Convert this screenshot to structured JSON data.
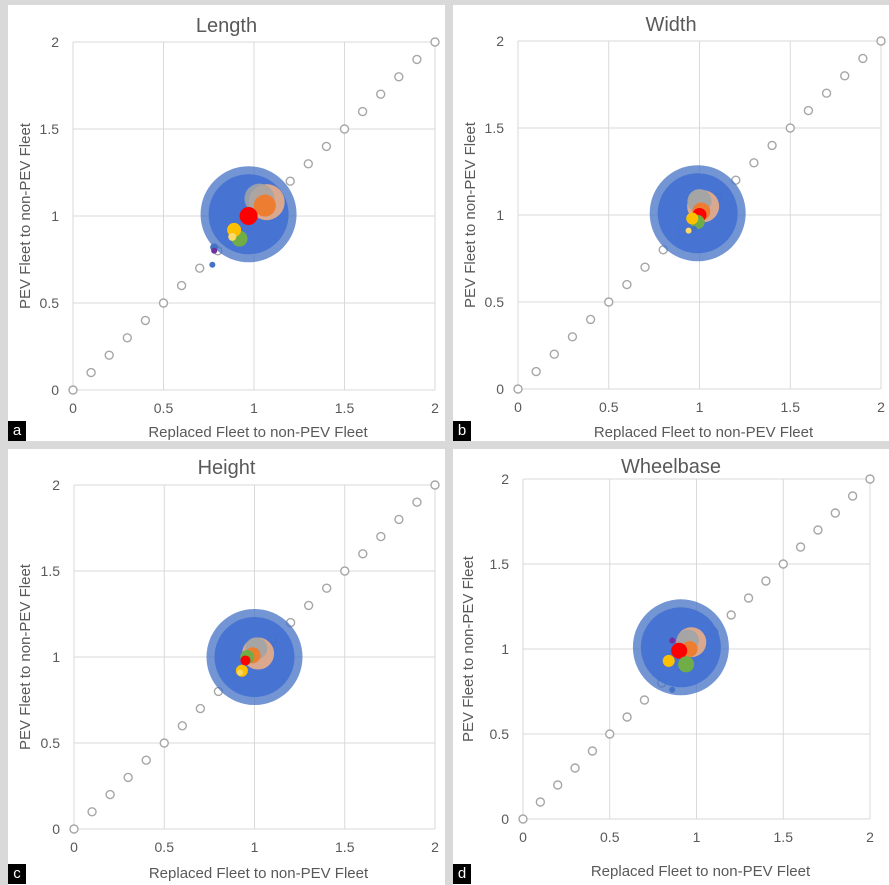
{
  "chart_data": [
    {
      "type": "scatter",
      "panel_label": "a",
      "title": "Length",
      "xlabel": "Replaced Fleet to non-PEV Fleet",
      "ylabel": "PEV Fleet to non-PEV Fleet",
      "xlim": [
        0,
        2
      ],
      "ylim": [
        0,
        2
      ],
      "xticks": [
        "0",
        "0.5",
        "1",
        "1.5",
        "2"
      ],
      "yticks": [
        "0",
        "0.5",
        "1",
        "1.5",
        "2"
      ],
      "reference_points": {
        "x": [
          0,
          0.1,
          0.2,
          0.3,
          0.4,
          0.5,
          0.6,
          0.7,
          0.8,
          0.9,
          1,
          1.1,
          1.2,
          1.3,
          1.4,
          1.5,
          1.6,
          1.7,
          1.8,
          1.9,
          2
        ],
        "y": [
          0,
          0.1,
          0.2,
          0.3,
          0.4,
          0.5,
          0.6,
          0.7,
          0.8,
          0.9,
          1,
          1.1,
          1.2,
          1.3,
          1.4,
          1.5,
          1.6,
          1.7,
          1.8,
          1.9,
          2
        ]
      },
      "bubbles": [
        {
          "x": 0.97,
          "y": 1.01,
          "size": 48,
          "color": "#4472c4"
        },
        {
          "x": 0.97,
          "y": 1.01,
          "size": 40,
          "color": "#3f6fd1"
        },
        {
          "x": 1.07,
          "y": 1.08,
          "size": 18,
          "color": "#f4b183"
        },
        {
          "x": 1.03,
          "y": 1.1,
          "size": 15,
          "color": "#a5a5a5"
        },
        {
          "x": 1.06,
          "y": 1.06,
          "size": 11,
          "color": "#ed7d31"
        },
        {
          "x": 0.97,
          "y": 1.0,
          "size": 9,
          "color": "#ff0000"
        },
        {
          "x": 0.92,
          "y": 0.87,
          "size": 8,
          "color": "#70ad47"
        },
        {
          "x": 0.89,
          "y": 0.92,
          "size": 7,
          "color": "#ffc000"
        },
        {
          "x": 0.88,
          "y": 0.88,
          "size": 4,
          "color": "#ffd966"
        },
        {
          "x": 0.78,
          "y": 0.82,
          "size": 4,
          "color": "#4472c4"
        },
        {
          "x": 0.77,
          "y": 0.72,
          "size": 3,
          "color": "#4472c4"
        },
        {
          "x": 0.78,
          "y": 0.8,
          "size": 3,
          "color": "#7030a0"
        }
      ]
    },
    {
      "type": "scatter",
      "panel_label": "b",
      "title": "Width",
      "xlabel": "Replaced Fleet to non-PEV Fleet",
      "ylabel": "PEV Fleet to non-PEV Fleet",
      "xlim": [
        0,
        2
      ],
      "ylim": [
        0,
        2
      ],
      "xticks": [
        "0",
        "0.5",
        "1",
        "1.5",
        "2"
      ],
      "yticks": [
        "0",
        "0.5",
        "1",
        "1.5",
        "2"
      ],
      "reference_points": {
        "x": [
          0,
          0.1,
          0.2,
          0.3,
          0.4,
          0.5,
          0.6,
          0.7,
          0.8,
          0.9,
          1,
          1.1,
          1.2,
          1.3,
          1.4,
          1.5,
          1.6,
          1.7,
          1.8,
          1.9,
          2
        ],
        "y": [
          0,
          0.1,
          0.2,
          0.3,
          0.4,
          0.5,
          0.6,
          0.7,
          0.8,
          0.9,
          1,
          1.1,
          1.2,
          1.3,
          1.4,
          1.5,
          1.6,
          1.7,
          1.8,
          1.9,
          2
        ]
      },
      "bubbles": [
        {
          "x": 0.99,
          "y": 1.01,
          "size": 48,
          "color": "#4472c4"
        },
        {
          "x": 0.99,
          "y": 1.01,
          "size": 40,
          "color": "#3f6fd1"
        },
        {
          "x": 1.02,
          "y": 1.05,
          "size": 16,
          "color": "#f4b183"
        },
        {
          "x": 1.0,
          "y": 1.08,
          "size": 12,
          "color": "#a5a5a5"
        },
        {
          "x": 1.01,
          "y": 1.02,
          "size": 9,
          "color": "#ed7d31"
        },
        {
          "x": 1.0,
          "y": 1.0,
          "size": 7,
          "color": "#ff0000"
        },
        {
          "x": 0.99,
          "y": 0.96,
          "size": 7,
          "color": "#70ad47"
        },
        {
          "x": 0.96,
          "y": 0.98,
          "size": 6,
          "color": "#ffc000"
        },
        {
          "x": 0.94,
          "y": 0.91,
          "size": 3,
          "color": "#ffd966"
        },
        {
          "x": 0.97,
          "y": 0.92,
          "size": 3,
          "color": "#4472c4"
        }
      ]
    },
    {
      "type": "scatter",
      "panel_label": "c",
      "title": "Height",
      "xlabel": "Replaced Fleet to non-PEV Fleet",
      "ylabel": "PEV Fleet to non-PEV Fleet",
      "xlim": [
        0,
        2
      ],
      "ylim": [
        0,
        2
      ],
      "xticks": [
        "0",
        "0.5",
        "1",
        "1.5",
        "2"
      ],
      "yticks": [
        "0",
        "0.5",
        "1",
        "1.5",
        "2"
      ],
      "reference_points": {
        "x": [
          0,
          0.1,
          0.2,
          0.3,
          0.4,
          0.5,
          0.6,
          0.7,
          0.8,
          0.9,
          1,
          1.1,
          1.2,
          1.3,
          1.4,
          1.5,
          1.6,
          1.7,
          1.8,
          1.9,
          2
        ],
        "y": [
          0,
          0.1,
          0.2,
          0.3,
          0.4,
          0.5,
          0.6,
          0.7,
          0.8,
          0.9,
          1,
          1.1,
          1.2,
          1.3,
          1.4,
          1.5,
          1.6,
          1.7,
          1.8,
          1.9,
          2
        ]
      },
      "bubbles": [
        {
          "x": 1.0,
          "y": 1.0,
          "size": 48,
          "color": "#4472c4"
        },
        {
          "x": 1.0,
          "y": 1.0,
          "size": 40,
          "color": "#3f6fd1"
        },
        {
          "x": 1.02,
          "y": 1.02,
          "size": 16,
          "color": "#f4b183"
        },
        {
          "x": 1.01,
          "y": 1.05,
          "size": 11,
          "color": "#a5a5a5"
        },
        {
          "x": 0.99,
          "y": 1.01,
          "size": 8,
          "color": "#ed7d31"
        },
        {
          "x": 0.96,
          "y": 1.0,
          "size": 7,
          "color": "#70ad47"
        },
        {
          "x": 0.95,
          "y": 0.98,
          "size": 5,
          "color": "#ff0000"
        },
        {
          "x": 0.93,
          "y": 0.92,
          "size": 6,
          "color": "#ffc000"
        },
        {
          "x": 0.92,
          "y": 0.91,
          "size": 3,
          "color": "#ffd966"
        }
      ]
    },
    {
      "type": "scatter",
      "panel_label": "d",
      "title": "Wheelbase",
      "xlabel": "Replaced Fleet to non-PEV Fleet",
      "ylabel": "PEV Fleet to non-PEV Fleet",
      "xlim": [
        0,
        2
      ],
      "ylim": [
        0,
        2
      ],
      "xticks": [
        "0",
        "0.5",
        "1",
        "1.5",
        "2"
      ],
      "yticks": [
        "0",
        "0.5",
        "1",
        "1.5",
        "2"
      ],
      "reference_points": {
        "x": [
          0,
          0.1,
          0.2,
          0.3,
          0.4,
          0.5,
          0.6,
          0.7,
          0.8,
          0.9,
          1,
          1.1,
          1.2,
          1.3,
          1.4,
          1.5,
          1.6,
          1.7,
          1.8,
          1.9,
          2
        ],
        "y": [
          0,
          0.1,
          0.2,
          0.3,
          0.4,
          0.5,
          0.6,
          0.7,
          0.8,
          0.9,
          1,
          1.1,
          1.2,
          1.3,
          1.4,
          1.5,
          1.6,
          1.7,
          1.8,
          1.9,
          2
        ]
      },
      "bubbles": [
        {
          "x": 0.91,
          "y": 1.01,
          "size": 48,
          "color": "#4472c4"
        },
        {
          "x": 0.91,
          "y": 1.01,
          "size": 40,
          "color": "#3f6fd1"
        },
        {
          "x": 0.97,
          "y": 1.04,
          "size": 15,
          "color": "#f4b183"
        },
        {
          "x": 0.95,
          "y": 1.05,
          "size": 11,
          "color": "#a5a5a5"
        },
        {
          "x": 0.96,
          "y": 1.0,
          "size": 8,
          "color": "#ed7d31"
        },
        {
          "x": 0.9,
          "y": 0.99,
          "size": 8,
          "color": "#ff0000"
        },
        {
          "x": 0.94,
          "y": 0.91,
          "size": 8,
          "color": "#70ad47"
        },
        {
          "x": 0.84,
          "y": 0.93,
          "size": 6,
          "color": "#ffc000"
        },
        {
          "x": 0.86,
          "y": 1.05,
          "size": 3,
          "color": "#7030a0"
        },
        {
          "x": 0.86,
          "y": 0.76,
          "size": 3,
          "color": "#4472c4"
        }
      ]
    }
  ]
}
